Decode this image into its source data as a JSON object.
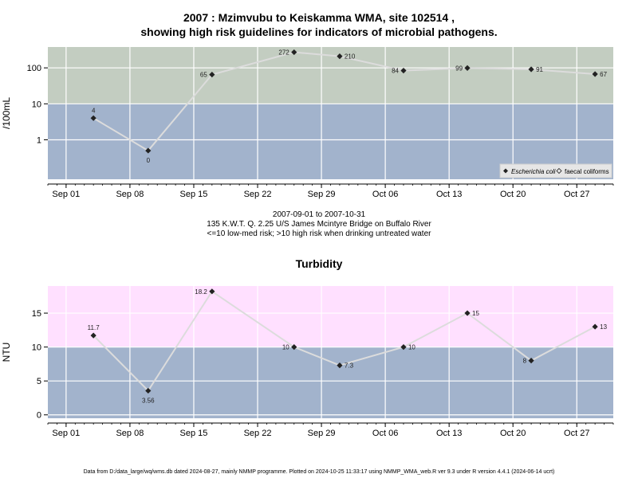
{
  "header": {
    "title_line1": "2007 : Mzimvubu to Keiskamma WMA, site 102514 ,",
    "title_line2": "showing high risk guidelines for indicators of microbial pathogens."
  },
  "subtitle": {
    "line1": "2007-09-01 to 2007-10-31",
    "line2": "135 K.W.T. Q. 2.25 U/S James Mcintyre Bridge on Buffalo River",
    "line3": "<=10 low-med risk; >10 high risk when drinking untreated water"
  },
  "footer": "Data from D:/data_large/wq/wms.db dated 2024-08-27, mainly NMMP programme. Plotted on 2024-10-25 11:33:17 using NMMP_WMA_web.R ver 9.3 under R version 4.4.1 (2024-06-14 ucrt)",
  "colors": {
    "high_risk_top": "#c3cdc1",
    "low_risk": "#a2b3cc",
    "high_risk_bottom": "#ffe0ff",
    "line": "#dcdcdc",
    "point": "#222222",
    "grid": "#ffffff"
  },
  "chart_data": [
    {
      "type": "line",
      "title": "",
      "ylabel": "/100mL",
      "yscale": "log",
      "ylim": [
        0.08,
        380
      ],
      "threshold": 10,
      "y_ticks": [
        1,
        10,
        100
      ],
      "y_tick_labels": [
        "1",
        "10",
        "100"
      ],
      "x_ticks": [
        "2007-09-01",
        "2007-09-08",
        "2007-09-15",
        "2007-09-22",
        "2007-09-29",
        "2007-10-06",
        "2007-10-13",
        "2007-10-20",
        "2007-10-27"
      ],
      "x_tick_labels": [
        "Sep 01",
        "Sep 08",
        "Sep 15",
        "Sep 22",
        "Sep 29",
        "Oct 06",
        "Oct 13",
        "Oct 20",
        "Oct 27"
      ],
      "xlim": [
        "2007-08-30",
        "2007-10-31"
      ],
      "legend": {
        "position": "bottom-right",
        "entries": [
          {
            "name": "Escherichia coli",
            "marker": "diamond-filled"
          },
          {
            "name": "faecal coliforms",
            "marker": "diamond-open"
          }
        ]
      },
      "series": [
        {
          "name": "Escherichia coli",
          "points": [
            {
              "x": "2007-09-04",
              "y": 4,
              "label": "4"
            },
            {
              "x": "2007-09-10",
              "y": 0.5,
              "label": "0"
            },
            {
              "x": "2007-09-17",
              "y": 65,
              "label": "65"
            },
            {
              "x": "2007-09-26",
              "y": 272,
              "label": "272"
            },
            {
              "x": "2007-10-01",
              "y": 210,
              "label": "210"
            },
            {
              "x": "2007-10-08",
              "y": 84,
              "label": "84"
            },
            {
              "x": "2007-10-15",
              "y": 99,
              "label": "99"
            },
            {
              "x": "2007-10-22",
              "y": 91,
              "label": "91"
            },
            {
              "x": "2007-10-29",
              "y": 67,
              "label": "67"
            }
          ]
        }
      ]
    },
    {
      "type": "line",
      "title": "Turbidity",
      "ylabel": "NTU",
      "ylim": [
        -0.5,
        19
      ],
      "threshold": 10,
      "y_ticks": [
        0,
        5,
        10,
        15
      ],
      "y_tick_labels": [
        "0",
        "5",
        "10",
        "15"
      ],
      "x_ticks": [
        "2007-09-01",
        "2007-09-08",
        "2007-09-15",
        "2007-09-22",
        "2007-09-29",
        "2007-10-06",
        "2007-10-13",
        "2007-10-20",
        "2007-10-27"
      ],
      "x_tick_labels": [
        "Sep 01",
        "Sep 08",
        "Sep 15",
        "Sep 22",
        "Sep 29",
        "Oct 06",
        "Oct 13",
        "Oct 20",
        "Oct 27"
      ],
      "xlim": [
        "2007-08-30",
        "2007-10-31"
      ],
      "series": [
        {
          "name": "",
          "points": [
            {
              "x": "2007-09-04",
              "y": 11.7,
              "label": "11.7"
            },
            {
              "x": "2007-09-10",
              "y": 3.56,
              "label": "3.56"
            },
            {
              "x": "2007-09-17",
              "y": 18.2,
              "label": "18.2"
            },
            {
              "x": "2007-09-26",
              "y": 10,
              "label": "10"
            },
            {
              "x": "2007-10-01",
              "y": 7.3,
              "label": "7.3"
            },
            {
              "x": "2007-10-08",
              "y": 10,
              "label": "10"
            },
            {
              "x": "2007-10-15",
              "y": 15,
              "label": "15"
            },
            {
              "x": "2007-10-22",
              "y": 8,
              "label": "8"
            },
            {
              "x": "2007-10-29",
              "y": 13,
              "label": "13"
            }
          ]
        }
      ]
    }
  ]
}
